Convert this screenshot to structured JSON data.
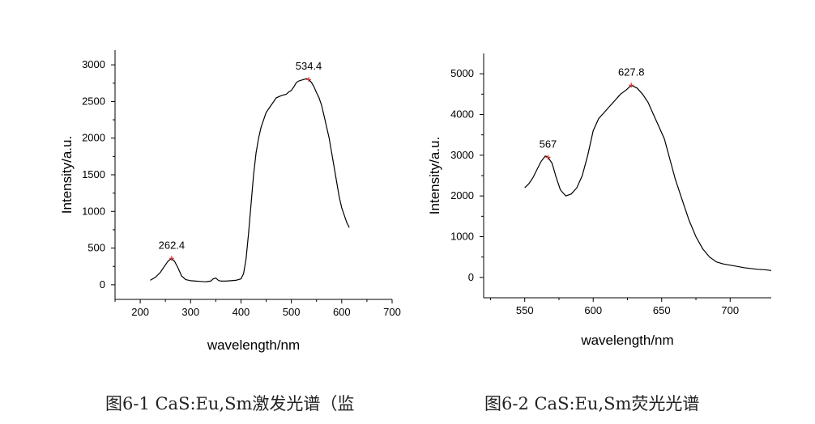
{
  "chart_data": [
    {
      "type": "line",
      "caption": "图6-1 CaS:Eu,Sm激发光谱（监",
      "xlabel": "wavelength/nm",
      "ylabel": "Intensity/a.u.",
      "xlim": [
        150,
        700
      ],
      "ylim": [
        -200,
        3200
      ],
      "x_ticks": [
        200,
        300,
        400,
        500,
        600,
        700
      ],
      "y_ticks": [
        0,
        500,
        1000,
        1500,
        2000,
        2500,
        3000
      ],
      "color": "#000000",
      "peak_color": "#e03030",
      "peaks": [
        {
          "x": 262.4,
          "y": 360,
          "label": "262.4"
        },
        {
          "x": 534.4,
          "y": 2800,
          "label": "534.4"
        }
      ],
      "series": [
        {
          "x": [
            220,
            230,
            240,
            248,
            255,
            262,
            268,
            275,
            282,
            290,
            300,
            310,
            320,
            330,
            340,
            345,
            350,
            355,
            360,
            370,
            380,
            390,
            400,
            405,
            410,
            415,
            420,
            425,
            430,
            435,
            440,
            445,
            450,
            460,
            470,
            480,
            490,
            495,
            500,
            505,
            510,
            515,
            520,
            525,
            530,
            534.4,
            540,
            545,
            550,
            555,
            560,
            565,
            570,
            575,
            580,
            585,
            590,
            595,
            600,
            605,
            610,
            615
          ],
          "y": [
            60,
            100,
            170,
            250,
            320,
            360,
            320,
            230,
            120,
            70,
            55,
            50,
            45,
            40,
            50,
            80,
            90,
            60,
            50,
            50,
            55,
            60,
            80,
            150,
            350,
            700,
            1100,
            1500,
            1800,
            2000,
            2150,
            2250,
            2350,
            2450,
            2550,
            2580,
            2600,
            2630,
            2650,
            2700,
            2760,
            2780,
            2790,
            2800,
            2810,
            2800,
            2760,
            2700,
            2620,
            2550,
            2450,
            2300,
            2150,
            2000,
            1800,
            1600,
            1400,
            1200,
            1050,
            950,
            850,
            780
          ]
        }
      ]
    },
    {
      "type": "line",
      "caption": "图6-2 CaS:Eu,Sm荧光光谱",
      "xlabel": "wavelength/nm",
      "ylabel": "Intensity/a.u.",
      "xlim": [
        520,
        730
      ],
      "ylim": [
        -500,
        5500
      ],
      "x_ticks": [
        550,
        600,
        650,
        700
      ],
      "y_ticks": [
        0,
        1000,
        2000,
        3000,
        4000,
        5000
      ],
      "color": "#000000",
      "peak_color": "#e03030",
      "peaks": [
        {
          "x": 567,
          "y": 2950,
          "label": "567"
        },
        {
          "x": 627.8,
          "y": 4720,
          "label": "627.8"
        }
      ],
      "series": [
        {
          "x": [
            550,
            553,
            556,
            559,
            562,
            565,
            567,
            570,
            573,
            576,
            580,
            584,
            588,
            592,
            596,
            600,
            604,
            608,
            612,
            616,
            620,
            624,
            627.8,
            632,
            636,
            640,
            644,
            648,
            652,
            656,
            660,
            665,
            670,
            675,
            680,
            685,
            690,
            695,
            700,
            705,
            710,
            715,
            720,
            725,
            730
          ],
          "y": [
            2200,
            2300,
            2450,
            2650,
            2850,
            2980,
            2950,
            2800,
            2450,
            2150,
            2000,
            2050,
            2200,
            2500,
            3000,
            3600,
            3900,
            4050,
            4200,
            4350,
            4500,
            4600,
            4720,
            4650,
            4500,
            4300,
            4000,
            3700,
            3400,
            2900,
            2400,
            1900,
            1400,
            1000,
            700,
            500,
            380,
            330,
            300,
            270,
            240,
            220,
            200,
            190,
            170
          ]
        }
      ]
    }
  ]
}
